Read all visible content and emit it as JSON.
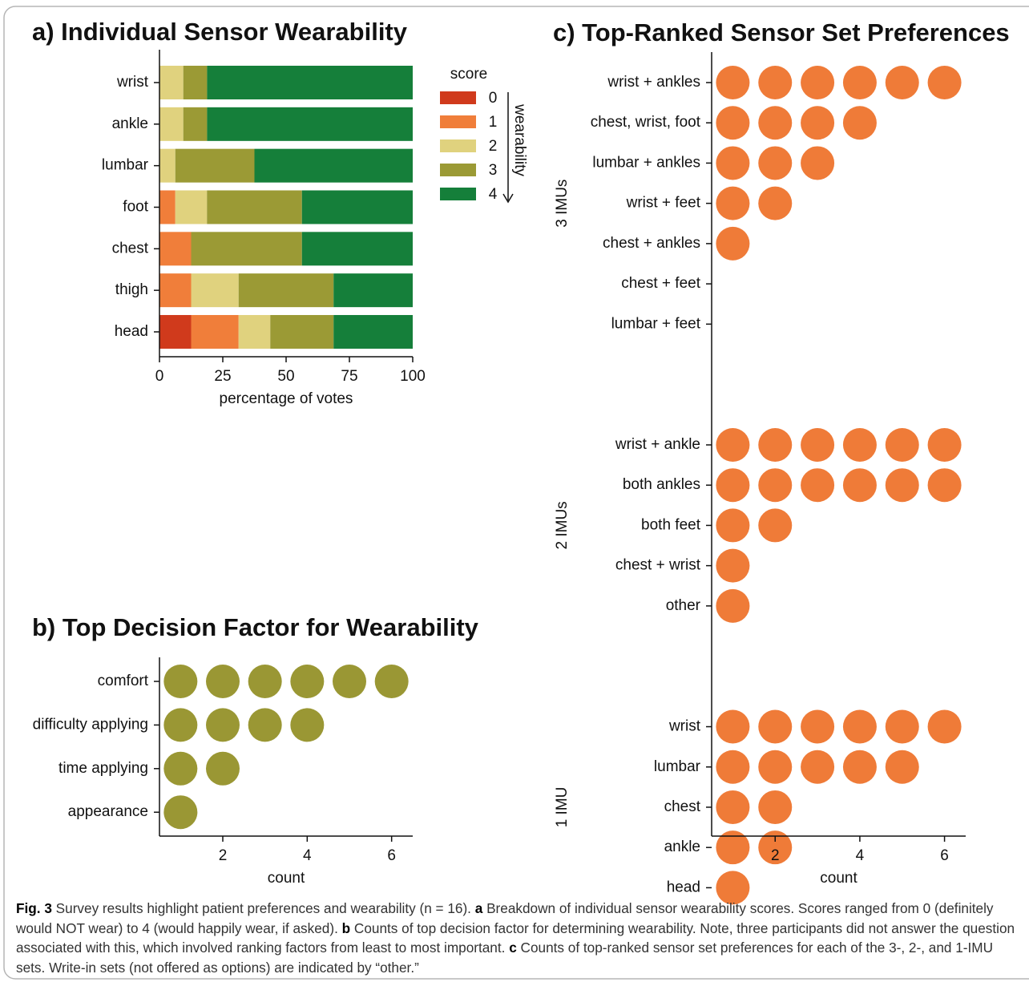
{
  "chart_data": [
    {
      "type": "stacked_bar",
      "orientation": "horizontal",
      "title": "a) Individual Sensor Wearability",
      "categories": [
        "wrist",
        "ankle",
        "lumbar",
        "foot",
        "chest",
        "thigh",
        "head"
      ],
      "series": [
        {
          "name": "0",
          "color": "#d03a1c",
          "values": [
            0,
            0,
            0,
            0,
            0,
            0,
            12.5
          ]
        },
        {
          "name": "1",
          "color": "#f07e3a",
          "values": [
            0,
            0,
            0,
            6.25,
            12.5,
            12.5,
            18.75
          ]
        },
        {
          "name": "2",
          "color": "#e0d27e",
          "values": [
            9.4,
            9.4,
            6.25,
            12.5,
            0,
            18.75,
            12.5
          ]
        },
        {
          "name": "3",
          "color": "#9b9a35",
          "values": [
            9.4,
            9.4,
            31.25,
            37.5,
            43.75,
            37.5,
            25
          ]
        },
        {
          "name": "4",
          "color": "#157f3a",
          "values": [
            81.2,
            81.2,
            62.5,
            43.75,
            43.75,
            31.25,
            31.25
          ]
        }
      ],
      "xlim": [
        0,
        100
      ],
      "xticks": [
        0,
        25,
        50,
        75,
        100
      ],
      "xlabel": "percentage of votes",
      "legend_title": "score",
      "legend_note": "wearability"
    },
    {
      "type": "dot",
      "title": "b) Top Decision Factor for Wearability",
      "color": "#9a9734",
      "groups": [
        {
          "categories": [
            "comfort",
            "difficulty applying",
            "time applying",
            "appearance"
          ],
          "values": [
            6,
            4,
            2,
            1
          ]
        }
      ],
      "xlim": [
        0.5,
        6.5
      ],
      "xticks": [
        2,
        4,
        6
      ],
      "xlabel": "count"
    },
    {
      "type": "dot",
      "title": "c) Top-Ranked Sensor Set Preferences",
      "color": "#ef7b38",
      "groups": [
        {
          "name": "3 IMUs",
          "categories": [
            "wrist + ankles",
            "chest, wrist, foot",
            "lumbar + ankles",
            "wrist + feet",
            "chest + ankles",
            "chest + feet",
            "lumbar + feet"
          ],
          "values": [
            6,
            4,
            3,
            2,
            1,
            0,
            0
          ]
        },
        {
          "name": "2 IMUs",
          "categories": [
            "wrist + ankle",
            "both ankles",
            "both feet",
            "chest + wrist",
            "other"
          ],
          "values": [
            6,
            6,
            2,
            1,
            1
          ]
        },
        {
          "name": "1 IMU",
          "categories": [
            "wrist",
            "lumbar",
            "chest",
            "ankle",
            "head"
          ],
          "values": [
            6,
            5,
            2,
            2,
            1
          ]
        }
      ],
      "xlim": [
        0.5,
        6.5
      ],
      "xticks": [
        2,
        4,
        6
      ],
      "xlabel": "count"
    }
  ],
  "caption": [
    {
      "text": "Fig. 3",
      "bold": true
    },
    {
      "text": " Survey results highlight patient preferences and wearability (n = 16). "
    },
    {
      "text": "a",
      "bold": true
    },
    {
      "text": " Breakdown of individual sensor wearability scores. Scores ranged from 0 (definitely would NOT wear) to 4 (would happily wear, if asked). "
    },
    {
      "text": "b",
      "bold": true
    },
    {
      "text": " Counts of top decision factor for determining wearability. Note, three participants did not answer the question associated with this, which involved ranking factors from least to most important. "
    },
    {
      "text": "c",
      "bold": true
    },
    {
      "text": " Counts of top-ranked sensor set preferences for each of the 3-, 2-, and 1-IMU sets. Write-in sets (not offered as options) are indicated by “other.”"
    }
  ]
}
